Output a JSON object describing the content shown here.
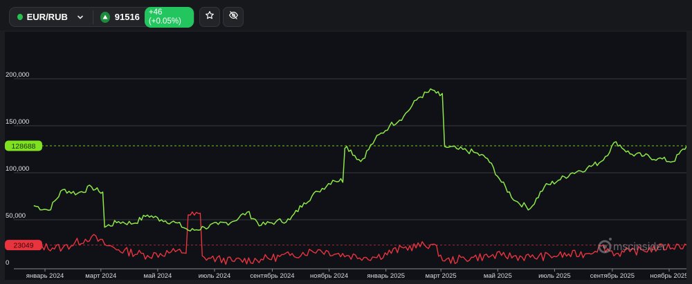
{
  "toolbar": {
    "pair": "EUR/RUB",
    "status_color": "#27c04f",
    "price": "91516",
    "change": "+46 (+0.05%)",
    "trend": "up",
    "favorite_icon": "star-icon",
    "hide_icon": "eye-off-icon",
    "dropdown_icon": "chevron-down-icon"
  },
  "watermark": "mscinsider",
  "colors": {
    "green_series": "#8de84a",
    "red_series": "#e8343f",
    "green_badge": "#7fe11f",
    "red_badge": "#e8343f",
    "panel_bg": "#101116",
    "grid": "#3a3b40"
  },
  "chart_data": {
    "type": "line",
    "title": "EUR/RUB",
    "xlabel": "",
    "ylabel": "",
    "ylim": [
      0,
      210000
    ],
    "y_ticks": [
      "0",
      "50,000",
      "100,000",
      "150,000",
      "200,000"
    ],
    "y_tick_values": [
      0,
      50000,
      100000,
      150000,
      200000
    ],
    "x_ticks": [
      "январь 2024",
      "март 2024",
      "май 2024",
      "июль 2024",
      "сентябрь 2024",
      "ноябрь 2024",
      "январь 2025",
      "март 2025",
      "май 2025",
      "июль 2025",
      "сентябрь 2025",
      "ноябрь 2025"
    ],
    "grid": true,
    "legend": null,
    "last_value_badges": [
      {
        "series": "green",
        "value": "128688"
      },
      {
        "series": "red",
        "value": "23049"
      }
    ],
    "series": [
      {
        "name": "green",
        "color": "#8de84a",
        "x": [
          "2023-12-20",
          "2024-01-05",
          "2024-01-20",
          "2024-02-05",
          "2024-02-20",
          "2024-02-28",
          "2024-03-05",
          "2024-03-20",
          "2024-04-05",
          "2024-04-20",
          "2024-05-05",
          "2024-05-20",
          "2024-06-05",
          "2024-06-20",
          "2024-07-05",
          "2024-07-20",
          "2024-08-05",
          "2024-08-20",
          "2024-09-05",
          "2024-09-20",
          "2024-10-05",
          "2024-10-20",
          "2024-11-05",
          "2024-11-20",
          "2024-12-05",
          "2024-12-20",
          "2025-01-05",
          "2025-01-20",
          "2025-02-05",
          "2025-02-20",
          "2025-02-28",
          "2025-03-05",
          "2025-03-20",
          "2025-04-05",
          "2025-04-20",
          "2025-05-05",
          "2025-05-20",
          "2025-06-05",
          "2025-06-20",
          "2025-07-05",
          "2025-07-20",
          "2025-08-05",
          "2025-08-20",
          "2025-09-05",
          "2025-09-20",
          "2025-10-05",
          "2025-10-20",
          "2025-11-05",
          "2025-11-20"
        ],
        "values": [
          65000,
          60000,
          82000,
          78000,
          85000,
          80000,
          42000,
          48000,
          46000,
          55000,
          50000,
          47000,
          38000,
          42000,
          45000,
          48000,
          58000,
          44000,
          48000,
          50000,
          68000,
          80000,
          92000,
          128000,
          112000,
          135000,
          150000,
          160000,
          180000,
          188000,
          182000,
          128000,
          125000,
          122000,
          115000,
          90000,
          70000,
          62000,
          85000,
          92000,
          100000,
          105000,
          112000,
          133000,
          120000,
          118000,
          115000,
          112000,
          128688
        ]
      },
      {
        "name": "red",
        "color": "#e8343f",
        "x": [
          "2023-12-20",
          "2024-01-20",
          "2024-02-20",
          "2024-03-05",
          "2024-03-20",
          "2024-04-20",
          "2024-05-20",
          "2024-06-05",
          "2024-06-20",
          "2024-07-20",
          "2024-08-20",
          "2024-09-20",
          "2024-10-20",
          "2024-11-20",
          "2024-12-20",
          "2025-01-20",
          "2025-02-20",
          "2025-03-05",
          "2025-04-05",
          "2025-05-05",
          "2025-06-05",
          "2025-07-05",
          "2025-08-05",
          "2025-08-20",
          "2025-09-05",
          "2025-09-20",
          "2025-10-20",
          "2025-11-20"
        ],
        "values": [
          22000,
          20000,
          32000,
          24000,
          18000,
          12000,
          16000,
          55000,
          10000,
          6000,
          8000,
          12000,
          18000,
          12000,
          10000,
          20000,
          24000,
          6000,
          10000,
          12000,
          10000,
          12000,
          14000,
          22000,
          14000,
          16000,
          20000,
          23049
        ]
      }
    ]
  }
}
